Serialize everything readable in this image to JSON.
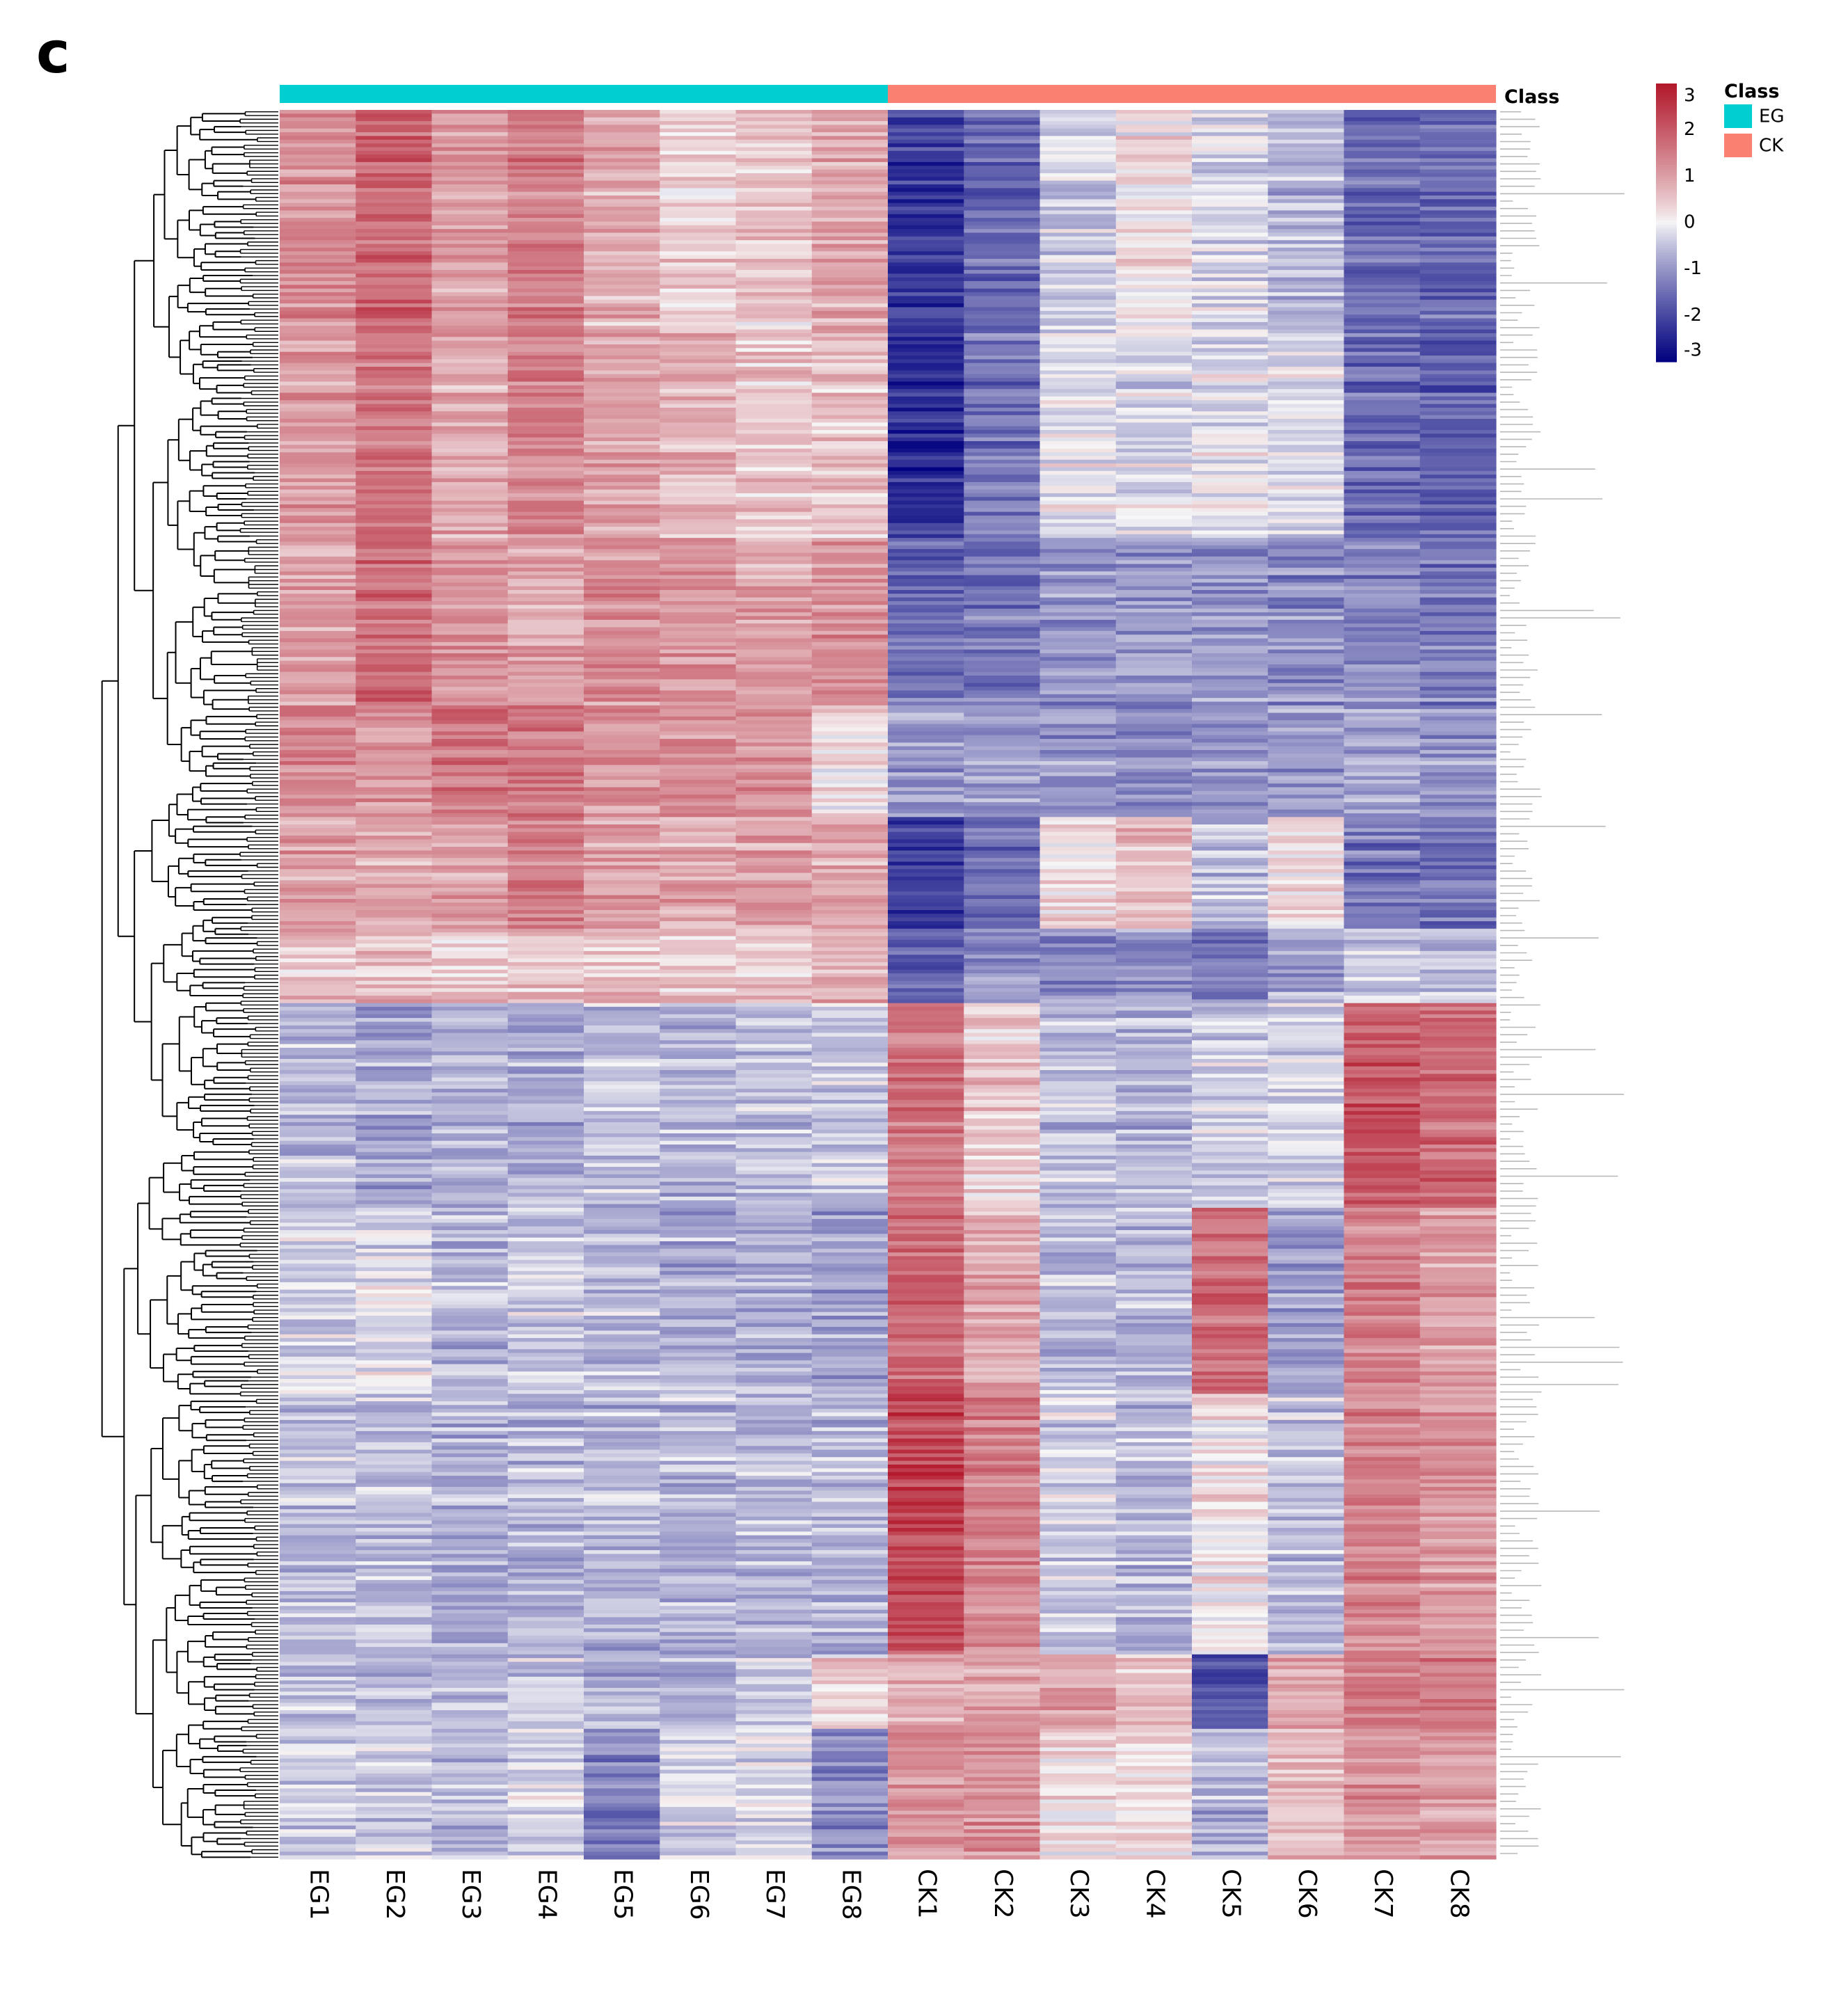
{
  "panel_label": "c",
  "chart_data": {
    "type": "heatmap",
    "title": "",
    "columns": [
      "EG1",
      "EG2",
      "EG3",
      "EG4",
      "EG5",
      "EG6",
      "EG7",
      "EG8",
      "CK1",
      "CK2",
      "CK3",
      "CK4",
      "CK5",
      "CK6",
      "CK7",
      "CK8"
    ],
    "column_classes": [
      "EG",
      "EG",
      "EG",
      "EG",
      "EG",
      "EG",
      "EG",
      "EG",
      "CK",
      "CK",
      "CK",
      "CK",
      "CK",
      "CK",
      "CK",
      "CK"
    ],
    "n_rows": 470,
    "row_blocks": [
      {
        "rows": 60,
        "values": [
          1.2,
          1.8,
          1.0,
          1.5,
          0.8,
          0.4,
          0.5,
          0.9,
          -2.2,
          -1.6,
          -0.4,
          0.2,
          -0.3,
          -0.6,
          -1.6,
          -1.6
        ]
      },
      {
        "rows": 55,
        "values": [
          1.1,
          1.6,
          0.9,
          1.4,
          0.9,
          0.7,
          0.6,
          0.6,
          -2.3,
          -1.4,
          -0.1,
          -0.2,
          -0.1,
          -0.2,
          -1.5,
          -1.7
        ]
      },
      {
        "rows": 45,
        "values": [
          1.0,
          1.7,
          1.2,
          1.0,
          1.2,
          1.1,
          1.0,
          1.3,
          -1.5,
          -1.4,
          -1.0,
          -1.0,
          -1.0,
          -1.1,
          -1.2,
          -1.3
        ]
      },
      {
        "rows": 30,
        "values": [
          1.4,
          1.1,
          1.5,
          1.6,
          1.1,
          1.2,
          1.1,
          0.2,
          -0.9,
          -0.9,
          -1.0,
          -1.1,
          -1.0,
          -1.0,
          -0.9,
          -1.0
        ]
      },
      {
        "rows": 30,
        "values": [
          1.0,
          0.9,
          1.0,
          1.4,
          1.0,
          0.9,
          1.0,
          0.9,
          -2.2,
          -1.6,
          0.2,
          0.6,
          -0.6,
          0.2,
          -1.4,
          -1.5
        ]
      },
      {
        "rows": 20,
        "values": [
          0.6,
          0.7,
          0.5,
          0.6,
          0.6,
          0.5,
          0.5,
          0.8,
          -1.6,
          -1.0,
          -1.2,
          -1.0,
          -1.4,
          -0.8,
          -0.3,
          -0.5
        ]
      },
      {
        "rows": 55,
        "values": [
          -0.6,
          -0.8,
          -0.6,
          -0.7,
          -0.5,
          -0.6,
          -0.5,
          -0.4,
          1.6,
          0.5,
          -0.5,
          -0.6,
          -0.3,
          -0.3,
          2.1,
          1.8
        ]
      },
      {
        "rows": 50,
        "values": [
          -0.3,
          -0.2,
          -0.6,
          -0.4,
          -0.6,
          -0.7,
          -0.7,
          -0.9,
          1.8,
          0.9,
          -0.6,
          -0.6,
          1.7,
          -0.9,
          1.4,
          1.1
        ]
      },
      {
        "rows": 70,
        "values": [
          -0.5,
          -0.5,
          -0.6,
          -0.6,
          -0.6,
          -0.6,
          -0.6,
          -0.6,
          2.3,
          1.4,
          -0.3,
          -0.6,
          0.2,
          -0.5,
          1.4,
          1.2
        ]
      },
      {
        "rows": 20,
        "values": [
          -0.6,
          -0.5,
          -0.6,
          -0.4,
          -0.7,
          -0.6,
          -0.5,
          0.4,
          0.8,
          0.9,
          1.0,
          0.5,
          -2.0,
          0.9,
          1.5,
          1.6
        ]
      },
      {
        "rows": 35,
        "values": [
          -0.5,
          -0.4,
          -0.7,
          -0.3,
          -1.4,
          -0.4,
          -0.2,
          -1.2,
          1.1,
          1.2,
          0.2,
          0.2,
          -0.7,
          0.6,
          1.2,
          1.0
        ]
      }
    ],
    "class_annotation": {
      "title": "Class",
      "entries": [
        {
          "label": "EG",
          "color": "#00ced1"
        },
        {
          "label": "CK",
          "color": "#fa8072"
        }
      ]
    },
    "colorbar": {
      "ticks": [
        "3",
        "2",
        "1",
        "0",
        "-1",
        "-2",
        "-3"
      ],
      "range": [
        -3,
        3
      ],
      "low_color": "#00007f",
      "mid_color": "#f7f7f7",
      "high_color": "#b2182b"
    },
    "xlabel": "",
    "ylabel": ""
  }
}
